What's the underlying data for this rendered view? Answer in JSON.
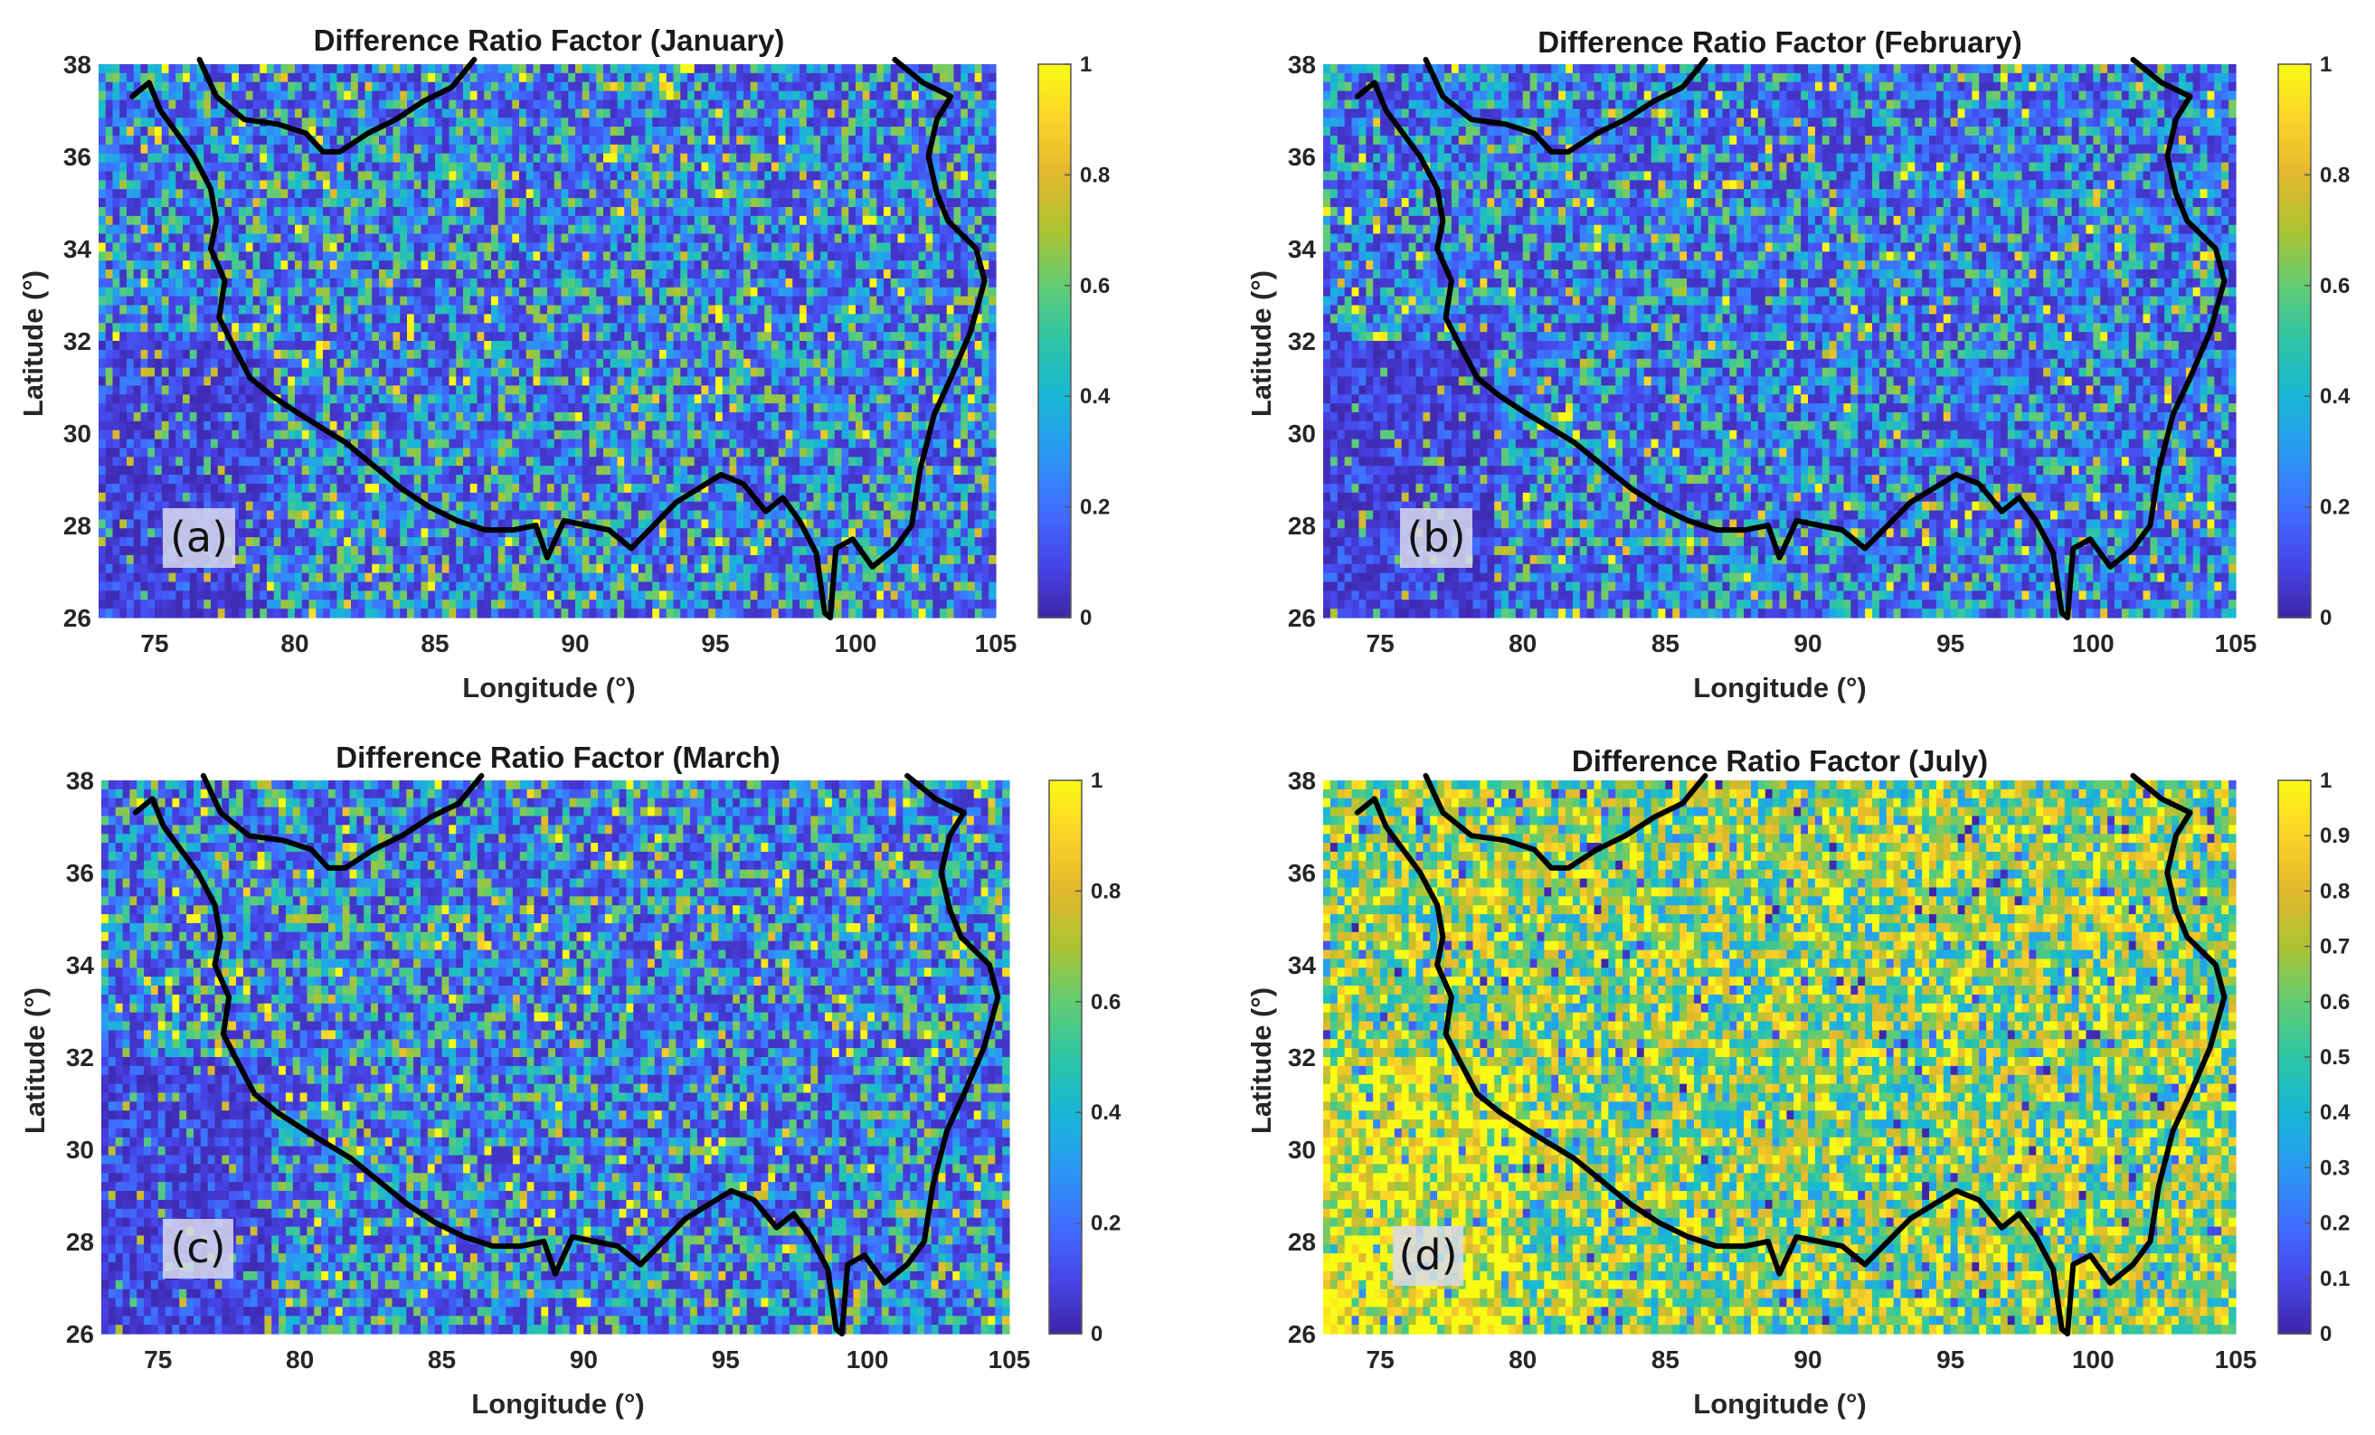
{
  "chart_data": [
    {
      "type": "heatmap",
      "title": "Difference Ratio Factor (January)",
      "panel_label": "(a)",
      "xlabel": "Longitude (°)",
      "ylabel": "Latitude (°)",
      "xlim": [
        73,
        105
      ],
      "ylim": [
        26,
        38
      ],
      "xticks": [
        75,
        80,
        85,
        90,
        95,
        100,
        105
      ],
      "yticks": [
        26,
        28,
        30,
        32,
        34,
        36,
        38
      ],
      "colorbar": {
        "range": [
          0,
          1
        ],
        "ticks": [
          "0",
          "0.2",
          "0.4",
          "0.6",
          "0.8",
          "1"
        ]
      },
      "colormap": "parula",
      "grid": false,
      "mean_value": 0.3,
      "boundary": "black outline of the Tibetan Plateau"
    },
    {
      "type": "heatmap",
      "title": "Difference Ratio Factor (February)",
      "panel_label": "(b)",
      "xlabel": "Longitude (°)",
      "ylabel": "Latitude (°)",
      "xlim": [
        73,
        105
      ],
      "ylim": [
        26,
        38
      ],
      "xticks": [
        75,
        80,
        85,
        90,
        95,
        100,
        105
      ],
      "yticks": [
        26,
        28,
        30,
        32,
        34,
        36,
        38
      ],
      "colorbar": {
        "range": [
          0,
          1
        ],
        "ticks": [
          "0",
          "0.2",
          "0.4",
          "0.6",
          "0.8",
          "1"
        ]
      },
      "colormap": "parula",
      "grid": false,
      "mean_value": 0.27,
      "boundary": "black outline of the Tibetan Plateau"
    },
    {
      "type": "heatmap",
      "title": "Difference Ratio Factor (March)",
      "panel_label": "(c)",
      "xlabel": "Longitude (°)",
      "ylabel": "Latitude (°)",
      "xlim": [
        73,
        105
      ],
      "ylim": [
        26,
        38
      ],
      "xticks": [
        75,
        80,
        85,
        90,
        95,
        100,
        105
      ],
      "yticks": [
        26,
        28,
        30,
        32,
        34,
        36,
        38
      ],
      "colorbar": {
        "range": [
          0,
          1
        ],
        "ticks": [
          "0",
          "0.2",
          "0.4",
          "0.6",
          "0.8",
          "1"
        ]
      },
      "colormap": "parula",
      "grid": false,
      "mean_value": 0.3,
      "boundary": "black outline of the Tibetan Plateau"
    },
    {
      "type": "heatmap",
      "title": "Difference Ratio Factor (July)",
      "panel_label": "(d)",
      "xlabel": "Longitude (°)",
      "ylabel": "Latitude (°)",
      "xlim": [
        73,
        105
      ],
      "ylim": [
        26,
        38
      ],
      "xticks": [
        75,
        80,
        85,
        90,
        95,
        100,
        105
      ],
      "yticks": [
        26,
        28,
        30,
        32,
        34,
        36,
        38
      ],
      "colorbar": {
        "range": [
          0,
          1
        ],
        "ticks": [
          "0",
          "0.1",
          "0.2",
          "0.3",
          "0.4",
          "0.5",
          "0.6",
          "0.7",
          "0.8",
          "0.9",
          "1"
        ]
      },
      "colormap": "parula",
      "grid": false,
      "mean_value": 0.68,
      "boundary": "black outline of the Tibetan Plateau"
    }
  ],
  "colors": {
    "parula_stops": [
      "#3e26a8",
      "#4746eb",
      "#3f70ff",
      "#2b99f3",
      "#18b7d6",
      "#2dc5a6",
      "#62cc73",
      "#acc432",
      "#e2b82d",
      "#fdd229",
      "#f9fb15"
    ],
    "boundary": "#000000",
    "panel_label_bg": "#d8d9ec"
  },
  "boundary_lonlat": [
    [
      74.2,
      37.3
    ],
    [
      74.8,
      37.6
    ],
    [
      75.2,
      37.0
    ],
    [
      75.8,
      36.5
    ],
    [
      76.4,
      36.0
    ],
    [
      77.0,
      35.3
    ],
    [
      77.2,
      34.6
    ],
    [
      77.0,
      34.0
    ],
    [
      77.5,
      33.3
    ],
    [
      77.3,
      32.5
    ],
    [
      77.8,
      31.9
    ],
    [
      78.4,
      31.2
    ],
    [
      79.2,
      30.8
    ],
    [
      80.2,
      30.4
    ],
    [
      81.0,
      30.1
    ],
    [
      81.8,
      29.8
    ],
    [
      82.8,
      29.3
    ],
    [
      83.8,
      28.8
    ],
    [
      84.8,
      28.4
    ],
    [
      85.8,
      28.1
    ],
    [
      86.8,
      27.9
    ],
    [
      87.8,
      27.9
    ],
    [
      88.6,
      28.0
    ],
    [
      89.0,
      27.3
    ],
    [
      89.6,
      28.1
    ],
    [
      90.4,
      28.0
    ],
    [
      91.2,
      27.9
    ],
    [
      92.0,
      27.5
    ],
    [
      92.8,
      28.0
    ],
    [
      93.6,
      28.5
    ],
    [
      94.4,
      28.8
    ],
    [
      95.2,
      29.1
    ],
    [
      96.0,
      28.9
    ],
    [
      96.8,
      28.3
    ],
    [
      97.4,
      28.6
    ],
    [
      98.0,
      28.1
    ],
    [
      98.6,
      27.4
    ],
    [
      98.9,
      26.1
    ],
    [
      99.1,
      26.0
    ],
    [
      99.3,
      27.5
    ],
    [
      99.9,
      27.7
    ],
    [
      100.6,
      27.1
    ],
    [
      101.4,
      27.5
    ],
    [
      102.0,
      28.0
    ],
    [
      102.3,
      29.2
    ],
    [
      102.8,
      30.4
    ],
    [
      103.4,
      31.2
    ],
    [
      104.1,
      32.2
    ],
    [
      104.6,
      33.3
    ],
    [
      104.3,
      34.0
    ],
    [
      103.3,
      34.6
    ],
    [
      102.9,
      35.2
    ],
    [
      102.6,
      36.0
    ],
    [
      102.9,
      36.8
    ],
    [
      103.4,
      37.3
    ],
    [
      102.4,
      37.6
    ],
    [
      101.4,
      38.1
    ]
  ],
  "basin_lonlat": [
    [
      76.6,
      38.1
    ],
    [
      77.2,
      37.3
    ],
    [
      78.2,
      36.8
    ],
    [
      79.4,
      36.7
    ],
    [
      80.4,
      36.5
    ],
    [
      81.0,
      36.1
    ],
    [
      81.6,
      36.1
    ],
    [
      82.6,
      36.5
    ],
    [
      83.6,
      36.8
    ],
    [
      84.6,
      37.2
    ],
    [
      85.6,
      37.5
    ],
    [
      86.4,
      38.1
    ]
  ]
}
